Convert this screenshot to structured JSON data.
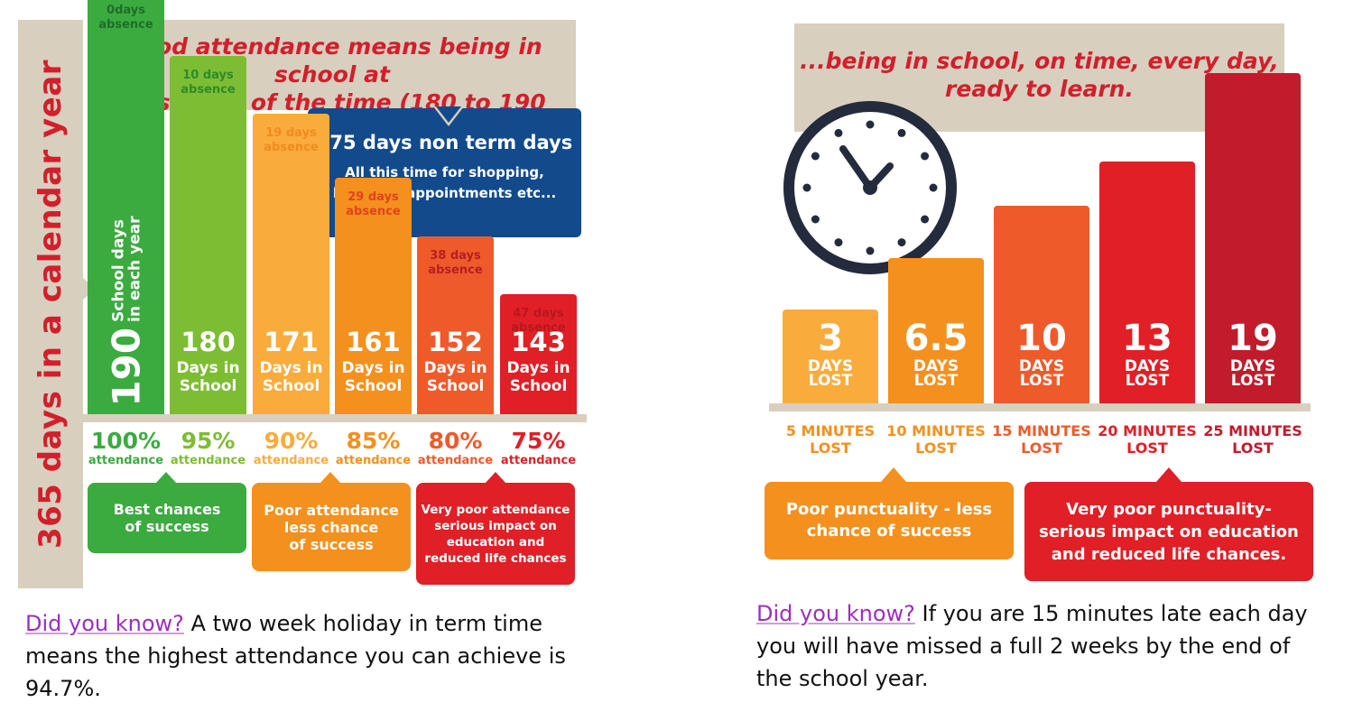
{
  "left_infographic": {
    "side_label": "365 days in a calendar year",
    "title_line1": "Good attendance means being in school at",
    "title_line2": "least 95% of the time (180 to 190 days)",
    "non_term": {
      "title": "175 days non term days",
      "line1": "All this time for shopping,",
      "line2": "holidays, appointments etc..."
    },
    "first_bar": {
      "number": "190",
      "line1": "School days",
      "line2": "in each year"
    },
    "days_in_school_label_1": "Days in",
    "days_in_school_label_2": "School",
    "attendance_word": "attendance",
    "boxes": {
      "best": [
        "Best chances",
        "of success"
      ],
      "poor": [
        "Poor attendance",
        "less chance",
        "of success"
      ],
      "very_poor": [
        "Very poor attendance",
        "serious impact on",
        "education and",
        "reduced life chances"
      ]
    }
  },
  "chart_data": [
    {
      "type": "bar",
      "categories": [
        "100%",
        "95%",
        "90%",
        "85%",
        "80%",
        "75%"
      ],
      "values": [
        190,
        180,
        171,
        161,
        152,
        143
      ],
      "absence_labels_line1": [
        "0days",
        "10 days",
        "19 days",
        "29 days",
        "38 days",
        "47 days"
      ],
      "absence_labels_line2": [
        "absence",
        "absence",
        "absence",
        "absence",
        "absence",
        "absence"
      ],
      "value_labels": [
        "190",
        "180",
        "171",
        "161",
        "152",
        "143"
      ],
      "colors": [
        "#3bab3f",
        "#7dbd33",
        "#f9ac3c",
        "#f4901e",
        "#ef5a2b",
        "#e01f26"
      ],
      "absence_colors": [
        "#1e6e2a",
        "#2f8a2a",
        "#f28a1f",
        "#e2421c",
        "#b51f22",
        "#b8171d"
      ],
      "pct_colors": [
        "#3bab3f",
        "#7dbd33",
        "#f9ac3c",
        "#f4901e",
        "#ef5a2b",
        "#e01f26"
      ]
    },
    {
      "type": "bar",
      "categories": [
        "5 MINUTES LOST",
        "10 MINUTES LOST",
        "15 MINUTES LOST",
        "20 MINUTES LOST",
        "25 MINUTES LOST"
      ],
      "values": [
        3,
        6.5,
        10,
        13,
        19
      ],
      "value_labels": [
        "3",
        "6.5",
        "10",
        "13",
        "19"
      ],
      "unit_line1": "DAYS",
      "unit_line2": "LOST",
      "minutes_line1": [
        "5 MINUTES",
        "10 MINUTES",
        "15 MINUTES",
        "20 MINUTES",
        "25 MINUTES"
      ],
      "minutes_line2": [
        "LOST",
        "LOST",
        "LOST",
        "LOST",
        "LOST"
      ],
      "colors": [
        "#f9ac3c",
        "#f4901e",
        "#ef5a2b",
        "#e01f26",
        "#c11b2c"
      ],
      "label_colors": [
        "#f4901e",
        "#f4901e",
        "#ef5a2b",
        "#e01f26",
        "#c11b2c"
      ]
    }
  ],
  "right_infographic": {
    "title_line1": "...being in school, on time, every day,",
    "title_line2": "ready to learn.",
    "boxes": {
      "poor": [
        "Poor punctuality - less",
        "chance of success"
      ],
      "very_poor": [
        "Very poor punctuality-",
        "serious impact on education",
        "and reduced life chances."
      ]
    }
  },
  "did_you_know": {
    "prefix": "Did you know?",
    "left_text_1": " A two week holiday in term time",
    "left_text_2": "means the highest attendance you can achieve is",
    "left_text_3": "94.7%.",
    "right_text_1": " If you are 15 minutes late each day",
    "right_text_2": "you will have missed a full 2 weeks by the end of",
    "right_text_3": "the school year."
  }
}
